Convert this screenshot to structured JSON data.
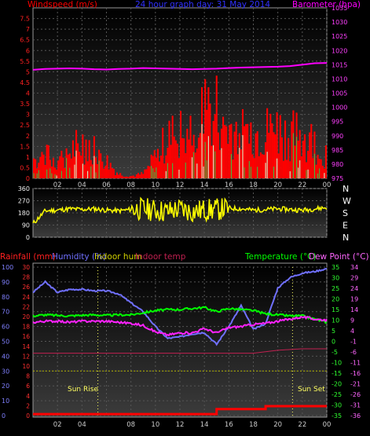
{
  "chart_data": [
    {
      "type": "bar",
      "title": "24 hour graph day: 31 May 2014",
      "left_axis_label": "Windspeed (m/s)",
      "right_axis_label": "Barometer (hpa)",
      "x_ticks": [
        "02",
        "04",
        "06",
        "08",
        "10",
        "12",
        "14",
        "16",
        "18",
        "20",
        "22",
        "00"
      ],
      "left_ticks": [
        "0",
        "0.5",
        "1",
        "1.5",
        "2",
        "2.5",
        "3",
        "3.5",
        "4",
        "4.5",
        "5",
        "5.5",
        "6",
        "6.5",
        "7",
        "7.5"
      ],
      "right_ticks": [
        "975",
        "980",
        "985",
        "990",
        "995",
        "1000",
        "1005",
        "1010",
        "1015",
        "1020",
        "1025",
        "1030",
        "1035"
      ],
      "ylim_left": [
        0,
        8
      ],
      "ylim_right": [
        975,
        1035
      ],
      "series": [
        {
          "name": "Windspeed",
          "color": "#ff0000",
          "x": [
            0,
            1,
            2,
            3,
            4,
            5,
            6,
            7,
            8,
            9,
            10,
            11,
            12,
            13,
            14,
            15,
            16,
            17,
            18,
            19,
            20,
            21,
            22,
            23,
            24
          ],
          "values": [
            0.9,
            1.0,
            0.8,
            1.2,
            1.6,
            1.5,
            0.8,
            0.2,
            0.1,
            0.2,
            0.9,
            1.8,
            2.0,
            2.2,
            2.8,
            3.1,
            2.2,
            2.2,
            2.0,
            2.1,
            2.2,
            1.9,
            2.0,
            1.6,
            0.9
          ]
        },
        {
          "name": "Barometer",
          "color": "#ff00ff",
          "x": [
            0,
            1,
            2,
            3,
            4,
            5,
            6,
            7,
            8,
            9,
            10,
            11,
            12,
            13,
            14,
            15,
            16,
            17,
            18,
            19,
            20,
            21,
            22,
            23,
            24
          ],
          "values": [
            1013.2,
            1013.5,
            1013.6,
            1013.7,
            1013.6,
            1013.4,
            1013.3,
            1013.5,
            1013.6,
            1013.8,
            1013.7,
            1013.6,
            1013.5,
            1013.4,
            1013.5,
            1013.6,
            1013.8,
            1014.0,
            1014.1,
            1014.2,
            1014.3,
            1014.5,
            1015.0,
            1015.5,
            1015.6
          ]
        }
      ]
    },
    {
      "type": "line",
      "left_ticks": [
        "0",
        "90",
        "180",
        "270",
        "360"
      ],
      "right_labels": [
        "N",
        "W",
        "S",
        "E",
        "N"
      ],
      "ylim": [
        0,
        360
      ],
      "series": [
        {
          "name": "Wind direction",
          "color": "#ffff00",
          "x": [
            0,
            1,
            2,
            3,
            4,
            5,
            6,
            7,
            8,
            9,
            10,
            11,
            12,
            13,
            14,
            15,
            16,
            17,
            18,
            19,
            20,
            21,
            22,
            23,
            24
          ],
          "values": [
            100,
            195,
            200,
            210,
            205,
            210,
            200,
            195,
            205,
            210,
            200,
            190,
            210,
            190,
            200,
            205,
            215,
            210,
            200,
            205,
            210,
            205,
            200,
            210,
            220
          ]
        }
      ]
    },
    {
      "type": "line",
      "top_labels": [
        "Rainfall (mm)",
        "Humidity (%)",
        "Indoor hum",
        "Indoor temp",
        "Temperature (°C)",
        "Dew Point (°C)"
      ],
      "ticks_humidity": [
        "0",
        "10",
        "20",
        "30",
        "40",
        "50",
        "60",
        "70",
        "80",
        "90",
        "100"
      ],
      "ticks_rainfall": [
        "0",
        "2",
        "4",
        "6",
        "8",
        "10",
        "12",
        "14",
        "16",
        "18",
        "20",
        "22",
        "24",
        "26",
        "28",
        "30"
      ],
      "ticks_temperature": [
        "-35",
        "-30",
        "-25",
        "-20",
        "-15",
        "-10",
        "-5",
        "0",
        "5",
        "10",
        "15",
        "20",
        "25",
        "30",
        "35"
      ],
      "ticks_dewpoint": [
        "-36",
        "-31",
        "-26",
        "-21",
        "-16",
        "-11",
        "-6",
        "-1",
        "4",
        "9",
        "14",
        "19",
        "24",
        "29",
        "34"
      ],
      "annotations": [
        "Sun Rise",
        "Sun Set"
      ],
      "series": [
        {
          "name": "Humidity",
          "color": "#7070ff",
          "x": [
            0,
            1,
            2,
            3,
            4,
            5,
            6,
            7,
            8,
            9,
            10,
            11,
            12,
            13,
            14,
            15,
            16,
            17,
            18,
            19,
            20,
            21,
            22,
            23,
            24
          ],
          "values": [
            83,
            90,
            83,
            85,
            85,
            84,
            84,
            82,
            76,
            70,
            60,
            52,
            53,
            55,
            56,
            48,
            60,
            74,
            58,
            62,
            86,
            93,
            96,
            97,
            99
          ]
        },
        {
          "name": "Temperature",
          "color": "#00ff00",
          "x": [
            0,
            1,
            2,
            3,
            4,
            5,
            6,
            7,
            8,
            9,
            10,
            11,
            12,
            13,
            14,
            15,
            16,
            17,
            18,
            19,
            20,
            21,
            22,
            23,
            24
          ],
          "values": [
            12.0,
            12.5,
            12.2,
            12.0,
            12.3,
            12.5,
            12.2,
            12.5,
            12.5,
            13.5,
            14.5,
            15.0,
            15.0,
            15.5,
            16.0,
            14.0,
            15.5,
            15.0,
            14.5,
            13.0,
            12.5,
            12.0,
            12.0,
            10.5,
            9.0
          ]
        },
        {
          "name": "Dew Point",
          "color": "#ff22ff",
          "x": [
            0,
            1,
            2,
            3,
            4,
            5,
            6,
            7,
            8,
            9,
            10,
            11,
            12,
            13,
            14,
            15,
            16,
            17,
            18,
            19,
            20,
            21,
            22,
            23,
            24
          ],
          "values": [
            9.0,
            9.5,
            9.5,
            9.0,
            9.5,
            9.5,
            9.5,
            9.0,
            8.5,
            7.5,
            4.5,
            3.0,
            4.0,
            4.0,
            6.0,
            4.0,
            6.5,
            7.0,
            8.0,
            8.5,
            9.5,
            10.5,
            11.5,
            10.5,
            10.0
          ]
        },
        {
          "name": "Rainfall",
          "color": "#ff0000",
          "x": [
            0,
            1,
            2,
            3,
            4,
            5,
            6,
            7,
            8,
            9,
            10,
            11,
            12,
            13,
            14,
            14.5,
            15,
            16,
            17,
            18,
            19,
            20,
            21,
            22,
            23,
            24
          ],
          "values": [
            0.3,
            0.3,
            0.3,
            0.3,
            0.3,
            0.3,
            0.3,
            0.3,
            0.3,
            0.3,
            0.3,
            0.3,
            0.3,
            0.3,
            0.3,
            0.3,
            1.3,
            1.3,
            1.3,
            1.3,
            1.9,
            1.9,
            1.9,
            1.9,
            1.9,
            1.9
          ]
        },
        {
          "name": "Indoor hum",
          "color": "#b0b000",
          "x": [
            0,
            24
          ],
          "values": [
            30,
            30
          ]
        },
        {
          "name": "Indoor temp",
          "color": "#c02050",
          "x": [
            0,
            4,
            8,
            12,
            14,
            16,
            18,
            20,
            22,
            24
          ],
          "values": [
            42,
            42,
            42,
            42,
            42,
            42,
            42,
            44,
            45,
            45
          ]
        }
      ]
    }
  ]
}
